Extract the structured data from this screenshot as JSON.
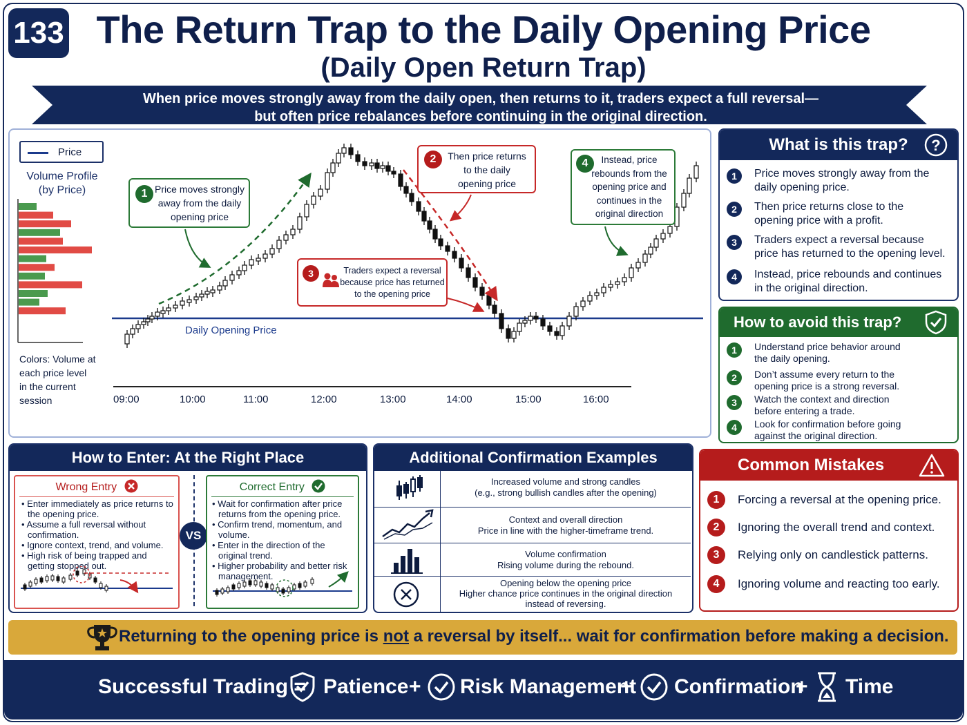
{
  "header": {
    "badge": "133",
    "title": "The Return Trap to the Daily Opening Price",
    "subtitle": "(Daily Open Return Trap)",
    "ribbon_line1": "When price moves strongly away from the daily open, then returns to it, traders expect a full reversal—",
    "ribbon_line2": "but often price rebalances before continuing in the original direction."
  },
  "chart": {
    "legend_price": "Price",
    "volume_title_1": "Volume Profile",
    "volume_title_2": "(by Price)",
    "colors_note": [
      "Colors: Volume at",
      "each price level",
      "in the current",
      "session"
    ],
    "open_line_label": "Daily Opening Price",
    "times": [
      "09:00",
      "10:00",
      "11:00",
      "12:00",
      "13:00",
      "14:00",
      "15:00",
      "16:00"
    ],
    "callout1": {
      "num": "1",
      "lines": [
        "Price moves strongly",
        "away from the daily",
        "opening price"
      ]
    },
    "callout2": {
      "num": "2",
      "lines": [
        "Then price returns",
        "to the daily",
        "opening price"
      ]
    },
    "callout3": {
      "num": "3",
      "lines": [
        "Traders expect a reversal",
        "because price has returned",
        "to the opening price"
      ]
    },
    "callout4": {
      "num": "4",
      "lines": [
        "Instead, price",
        "rebounds from the",
        "opening price and",
        "continues in the",
        "original direction"
      ]
    },
    "colors": {
      "up": "#ffffff",
      "down": "#111111",
      "open_line": "#1b3a8c",
      "vol_green": "#4a9a4e",
      "vol_red": "#e14b45"
    }
  },
  "what": {
    "title": "What is this trap?",
    "items": [
      {
        "n": "1",
        "a": "Price moves strongly away from the",
        "b": "daily opening price."
      },
      {
        "n": "2",
        "a": "Then price returns close to the",
        "b": "opening price with a profit."
      },
      {
        "n": "3",
        "a": "Traders expect a reversal because",
        "b": "price has returned to the opening level."
      },
      {
        "n": "4",
        "a": "Instead, price rebounds and continues",
        "b": "in the original direction."
      }
    ]
  },
  "avoid": {
    "title": "How to avoid this trap?",
    "items": [
      {
        "n": "1",
        "a": "Understand price behavior around",
        "b": "the daily opening."
      },
      {
        "n": "2",
        "a": "Don’t assume every return to the",
        "b": "opening price is a strong reversal."
      },
      {
        "n": "3",
        "a": "Watch the context and direction",
        "b": "before entering a trade."
      },
      {
        "n": "4",
        "a": "Look for confirmation before going",
        "b": "against the original direction."
      }
    ]
  },
  "enter": {
    "title": "How to Enter: At the Right Place",
    "wrong_title": "Wrong Entry",
    "wrong_items": [
      "Enter immediately as price returns to the opening price.",
      "Assume a full reversal without confirmation.",
      "Ignore context, trend, and volume.",
      "High risk of being trapped and getting stopped out."
    ],
    "vs": "VS",
    "correct_title": "Correct Entry",
    "correct_items": [
      "Wait for confirmation after price returns from the opening price.",
      "Confirm trend, momentum, and volume.",
      "Enter in the direction of the original trend.",
      "Higher probability and better risk management."
    ]
  },
  "confirm": {
    "title": "Additional Confirmation Examples",
    "rows": [
      {
        "a": "Increased volume and strong candles",
        "b": "(e.g., strong bullish candles after the opening)"
      },
      {
        "a": "Context and overall direction",
        "b": "Price in line with the higher-timeframe trend."
      },
      {
        "a": "Volume confirmation",
        "b": "Rising volume during the rebound."
      },
      {
        "a": "Opening below the opening price",
        "b": "Higher chance price continues in the original direction",
        "c": "instead of reversing."
      }
    ]
  },
  "mistakes": {
    "title": "Common Mistakes",
    "items": [
      {
        "n": "1",
        "t": "Forcing a reversal at the opening price."
      },
      {
        "n": "2",
        "t": "Ignoring the overall trend and context."
      },
      {
        "n": "3",
        "t": "Relying only on candlestick patterns."
      },
      {
        "n": "4",
        "t": "Ignoring volume and reacting too early."
      }
    ]
  },
  "banner": {
    "pre": "Returning to the opening price is ",
    "not": "not",
    "post": " a reversal by itself... wait for confirmation before making a decision."
  },
  "footer": {
    "lead": "Successful Trading =",
    "items": [
      "Patience",
      "Risk Management",
      "Confirmation",
      "Time"
    ],
    "plus": "+"
  }
}
